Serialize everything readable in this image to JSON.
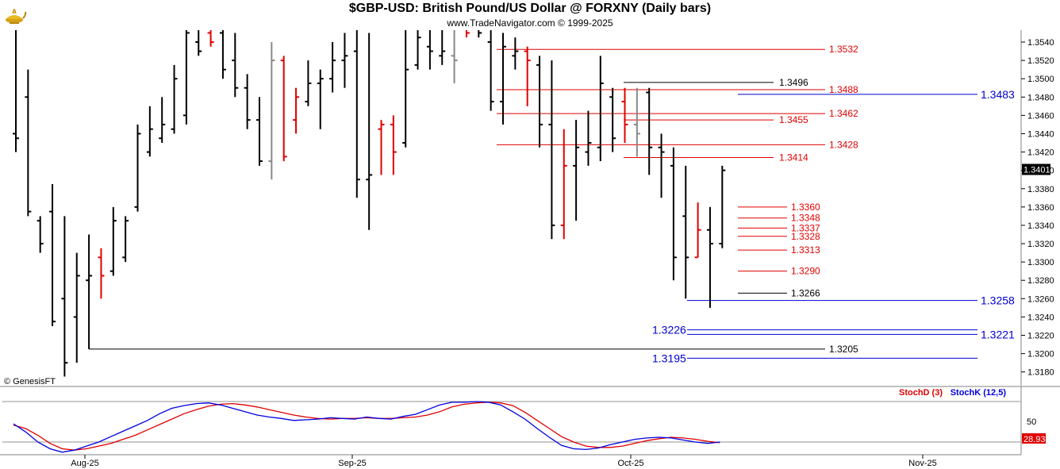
{
  "header": {
    "title": "$GBP-USD:  British Pound/US Dollar @ FORXNY  (Daily bars)",
    "subtitle": "www.TradeNavigator.com © 1999-2025",
    "credit": "© GenesisFT",
    "logo_icon": "genie-lamp-icon"
  },
  "chart_data": [
    {
      "type": "ohlc-bar",
      "title": "$GBP-USD:  British Pound/US Dollar @ FORXNY  (Daily bars)",
      "ylim": [
        1.3165,
        1.3553
      ],
      "price_ticks": [
        "1.3540",
        "1.3520",
        "1.3500",
        "1.3480",
        "1.3460",
        "1.3440",
        "1.3420",
        "1.3400",
        "1.3380",
        "1.3360",
        "1.3340",
        "1.3320",
        "1.3300",
        "1.3280",
        "1.3260",
        "1.3240",
        "1.3220",
        "1.3200",
        "1.3180"
      ],
      "last_price": "1.3401",
      "x_labels": [
        "Aug-25",
        "Sep-25",
        "Oct-25",
        "Nov-25"
      ],
      "bar_colors": {
        "normal": "#000000",
        "down_reversal": "#e00000",
        "neutral": "#888888"
      },
      "bars": [
        {
          "h": 1.356,
          "l": 1.342,
          "o": 1.344,
          "c": 1.3435,
          "t": "k"
        },
        {
          "h": 1.351,
          "l": 1.335,
          "o": 1.348,
          "c": 1.3355,
          "t": "k"
        },
        {
          "h": 1.335,
          "l": 1.331,
          "o": 1.3345,
          "c": 1.332,
          "t": "k"
        },
        {
          "h": 1.3385,
          "l": 1.323,
          "o": 1.3355,
          "c": 1.3235,
          "t": "k"
        },
        {
          "h": 1.335,
          "l": 1.3175,
          "o": 1.326,
          "c": 1.319,
          "t": "k"
        },
        {
          "h": 1.331,
          "l": 1.319,
          "o": 1.324,
          "c": 1.3285,
          "t": "k"
        },
        {
          "h": 1.333,
          "l": 1.3205,
          "o": 1.328,
          "c": 1.3285,
          "t": "k"
        },
        {
          "h": 1.3315,
          "l": 1.326,
          "o": 1.3305,
          "c": 1.3285,
          "t": "r"
        },
        {
          "h": 1.336,
          "l": 1.3285,
          "o": 1.329,
          "c": 1.3345,
          "t": "k"
        },
        {
          "h": 1.335,
          "l": 1.33,
          "o": 1.3305,
          "c": 1.3345,
          "t": "k"
        },
        {
          "h": 1.345,
          "l": 1.3355,
          "o": 1.336,
          "c": 1.344,
          "t": "k"
        },
        {
          "h": 1.347,
          "l": 1.3415,
          "o": 1.342,
          "c": 1.3445,
          "t": "k"
        },
        {
          "h": 1.348,
          "l": 1.343,
          "o": 1.3435,
          "c": 1.345,
          "t": "k"
        },
        {
          "h": 1.3515,
          "l": 1.344,
          "o": 1.3445,
          "c": 1.35,
          "t": "k"
        },
        {
          "h": 1.358,
          "l": 1.345,
          "o": 1.346,
          "c": 1.355,
          "t": "k"
        },
        {
          "h": 1.356,
          "l": 1.3525,
          "o": 1.354,
          "c": 1.353,
          "t": "k"
        },
        {
          "h": 1.3555,
          "l": 1.3535,
          "o": 1.355,
          "c": 1.354,
          "t": "r"
        },
        {
          "h": 1.357,
          "l": 1.35,
          "o": 1.355,
          "c": 1.351,
          "t": "k"
        },
        {
          "h": 1.355,
          "l": 1.348,
          "o": 1.352,
          "c": 1.349,
          "t": "k"
        },
        {
          "h": 1.3505,
          "l": 1.3445,
          "o": 1.349,
          "c": 1.3455,
          "t": "k"
        },
        {
          "h": 1.348,
          "l": 1.3405,
          "o": 1.3455,
          "c": 1.341,
          "t": "k"
        },
        {
          "h": 1.354,
          "l": 1.339,
          "o": 1.341,
          "c": 1.352,
          "t": "n"
        },
        {
          "h": 1.3525,
          "l": 1.341,
          "o": 1.352,
          "c": 1.3415,
          "t": "r"
        },
        {
          "h": 1.349,
          "l": 1.344,
          "o": 1.3455,
          "c": 1.348,
          "t": "r"
        },
        {
          "h": 1.352,
          "l": 1.347,
          "o": 1.3475,
          "c": 1.3495,
          "t": "k"
        },
        {
          "h": 1.351,
          "l": 1.3445,
          "o": 1.3495,
          "c": 1.35,
          "t": "k"
        },
        {
          "h": 1.354,
          "l": 1.3485,
          "o": 1.35,
          "c": 1.352,
          "t": "k"
        },
        {
          "h": 1.355,
          "l": 1.349,
          "o": 1.352,
          "c": 1.3525,
          "t": "k"
        },
        {
          "h": 1.356,
          "l": 1.337,
          "o": 1.353,
          "c": 1.339,
          "t": "k"
        },
        {
          "h": 1.355,
          "l": 1.3335,
          "o": 1.339,
          "c": 1.3395,
          "t": "k"
        },
        {
          "h": 1.3455,
          "l": 1.3395,
          "o": 1.3445,
          "c": 1.345,
          "t": "r"
        },
        {
          "h": 1.346,
          "l": 1.3395,
          "o": 1.345,
          "c": 1.342,
          "t": "r"
        },
        {
          "h": 1.356,
          "l": 1.3425,
          "o": 1.343,
          "c": 1.351,
          "t": "k"
        },
        {
          "h": 1.356,
          "l": 1.351,
          "o": 1.3515,
          "c": 1.3545,
          "t": "k"
        },
        {
          "h": 1.356,
          "l": 1.351,
          "o": 1.3535,
          "c": 1.353,
          "t": "k"
        },
        {
          "h": 1.356,
          "l": 1.3515,
          "o": 1.3525,
          "c": 1.353,
          "t": "k"
        },
        {
          "h": 1.3555,
          "l": 1.3495,
          "o": 1.3525,
          "c": 1.352,
          "t": "n"
        },
        {
          "h": 1.357,
          "l": 1.3545,
          "o": 1.356,
          "c": 1.355,
          "t": "r"
        },
        {
          "h": 1.3565,
          "l": 1.3545,
          "o": 1.3555,
          "c": 1.355,
          "t": "k"
        },
        {
          "h": 1.356,
          "l": 1.3465,
          "o": 1.354,
          "c": 1.3475,
          "t": "k"
        },
        {
          "h": 1.355,
          "l": 1.345,
          "o": 1.3475,
          "c": 1.3535,
          "t": "k"
        },
        {
          "h": 1.3545,
          "l": 1.351,
          "o": 1.3525,
          "c": 1.353,
          "t": "k"
        },
        {
          "h": 1.3535,
          "l": 1.347,
          "o": 1.353,
          "c": 1.352,
          "t": "r"
        },
        {
          "h": 1.3525,
          "l": 1.3425,
          "o": 1.3515,
          "c": 1.345,
          "t": "k"
        },
        {
          "h": 1.352,
          "l": 1.3325,
          "o": 1.345,
          "c": 1.334,
          "t": "k"
        },
        {
          "h": 1.3445,
          "l": 1.3325,
          "o": 1.334,
          "c": 1.3405,
          "t": "r"
        },
        {
          "h": 1.3455,
          "l": 1.3345,
          "o": 1.3405,
          "c": 1.3425,
          "t": "k"
        },
        {
          "h": 1.3465,
          "l": 1.3405,
          "o": 1.342,
          "c": 1.343,
          "t": "k"
        },
        {
          "h": 1.3525,
          "l": 1.341,
          "o": 1.3425,
          "c": 1.3495,
          "t": "k"
        },
        {
          "h": 1.349,
          "l": 1.342,
          "o": 1.348,
          "c": 1.3435,
          "t": "k"
        },
        {
          "h": 1.349,
          "l": 1.343,
          "o": 1.3475,
          "c": 1.345,
          "t": "r"
        },
        {
          "h": 1.349,
          "l": 1.3415,
          "o": 1.345,
          "c": 1.344,
          "t": "n"
        },
        {
          "h": 1.349,
          "l": 1.3395,
          "o": 1.3485,
          "c": 1.3425,
          "t": "k"
        },
        {
          "h": 1.344,
          "l": 1.337,
          "o": 1.3425,
          "c": 1.342,
          "t": "k"
        },
        {
          "h": 1.3425,
          "l": 1.328,
          "o": 1.3405,
          "c": 1.3305,
          "t": "k"
        },
        {
          "h": 1.3405,
          "l": 1.326,
          "o": 1.335,
          "c": 1.3305,
          "t": "k"
        },
        {
          "h": 1.3365,
          "l": 1.3305,
          "o": 1.3305,
          "c": 1.3335,
          "t": "r"
        },
        {
          "h": 1.336,
          "l": 1.325,
          "o": 1.3335,
          "c": 1.332,
          "t": "k"
        },
        {
          "h": 1.3405,
          "l": 1.3315,
          "o": 1.332,
          "c": 1.34,
          "t": "k"
        }
      ],
      "levels": [
        {
          "value": 1.3532,
          "label": "1.3532",
          "color": "red"
        },
        {
          "value": 1.3496,
          "label": "1.3496",
          "color": "black"
        },
        {
          "value": 1.3488,
          "label": "1.3488",
          "color": "red"
        },
        {
          "value": 1.3483,
          "label": "1.3483",
          "color": "blue"
        },
        {
          "value": 1.3462,
          "label": "1.3462",
          "color": "red"
        },
        {
          "value": 1.3455,
          "label": "1.3455",
          "color": "red"
        },
        {
          "value": 1.3428,
          "label": "1.3428",
          "color": "red"
        },
        {
          "value": 1.3414,
          "label": "1.3414",
          "color": "red"
        },
        {
          "value": 1.336,
          "label": "1.3360",
          "color": "red"
        },
        {
          "value": 1.3348,
          "label": "1.3348",
          "color": "red"
        },
        {
          "value": 1.3337,
          "label": "1.3337",
          "color": "red"
        },
        {
          "value": 1.3328,
          "label": "1.3328",
          "color": "red"
        },
        {
          "value": 1.3313,
          "label": "1.3313",
          "color": "red"
        },
        {
          "value": 1.329,
          "label": "1.3290",
          "color": "red"
        },
        {
          "value": 1.3266,
          "label": "1.3266",
          "color": "black"
        },
        {
          "value": 1.3258,
          "label": "1.3258",
          "color": "blue"
        },
        {
          "value": 1.3226,
          "label": "1.3226",
          "color": "blue"
        },
        {
          "value": 1.3221,
          "label": "1.3221",
          "color": "blue"
        },
        {
          "value": 1.3205,
          "label": "1.3205",
          "color": "black"
        },
        {
          "value": 1.3195,
          "label": "1.3195",
          "color": "blue"
        }
      ]
    },
    {
      "type": "line",
      "indicator": "stochastic",
      "ylim": [
        0,
        100
      ],
      "y_ticks": [
        "50"
      ],
      "last_value": "28.93",
      "series": [
        {
          "name": "StochD (3)",
          "color": "#e00000",
          "values": [
            45,
            40,
            30,
            18,
            10,
            8,
            10,
            14,
            18,
            24,
            30,
            38,
            46,
            54,
            62,
            68,
            73,
            76,
            77,
            75,
            72,
            68,
            64,
            60,
            57,
            55,
            54,
            55,
            55,
            56,
            55,
            55,
            56,
            57,
            60,
            65,
            72,
            76,
            78,
            79,
            78,
            74,
            64,
            52,
            40,
            28,
            20,
            14,
            12,
            12,
            14,
            18,
            22,
            25,
            27,
            26,
            24,
            21,
            19
          ]
        },
        {
          "name": "StochK (12,5)",
          "color": "#0000e0",
          "values": [
            47,
            35,
            20,
            10,
            5,
            8,
            14,
            20,
            28,
            36,
            44,
            52,
            62,
            70,
            74,
            77,
            78,
            75,
            70,
            65,
            60,
            57,
            55,
            52,
            53,
            54,
            56,
            55,
            54,
            57,
            55,
            54,
            58,
            61,
            68,
            75,
            79,
            79,
            80,
            79,
            75,
            65,
            54,
            40,
            27,
            15,
            10,
            9,
            11,
            16,
            20,
            24,
            26,
            27,
            26,
            23,
            20,
            18,
            20
          ]
        }
      ]
    }
  ]
}
